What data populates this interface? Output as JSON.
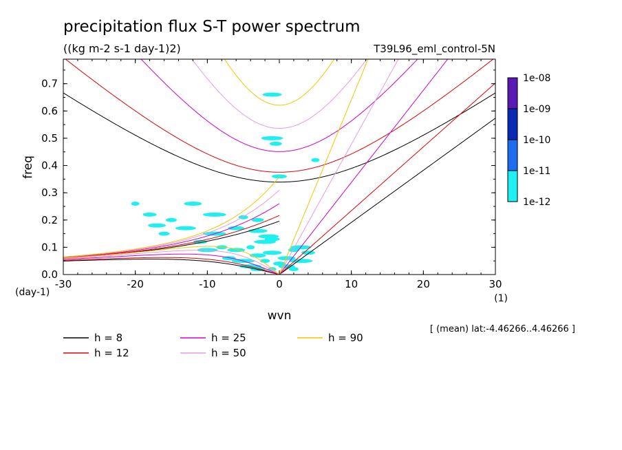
{
  "chart_data": {
    "type": "line",
    "title": "precipitation flux S-T power spectrum",
    "subtitle": "((kg m-2 s-1 day-1)2)",
    "run_label": "T39L96_eml_control-5N",
    "xlabel": "wvn",
    "ylabel": "freq",
    "x_unit": "(1)",
    "y_unit": "(day-1)",
    "xlim": [
      -30,
      30
    ],
    "ylim": [
      0.0,
      0.79
    ],
    "xticks": [
      "-30",
      "-20",
      "-10",
      "0",
      "10",
      "20",
      "30"
    ],
    "yticks": [
      "0.0",
      "0.1",
      "0.2",
      "0.3",
      "0.4",
      "0.5",
      "0.6",
      "0.7"
    ],
    "footnote": "[ (mean) lat:-4.46266..4.46266 ]",
    "colorbar": {
      "labels": [
        "1e-08",
        "1e-09",
        "1e-10",
        "1e-11",
        "1e-12"
      ],
      "colors": [
        "#5a19b4",
        "#0a2ab4",
        "#1e6cf0",
        "#1ef0f0"
      ]
    },
    "series": [
      {
        "name": "h =  8",
        "h": 8,
        "color": "#000000"
      },
      {
        "name": "h = 12",
        "h": 12,
        "color": "#e00000"
      },
      {
        "name": "h = 25",
        "h": 25,
        "color": "#d000c8"
      },
      {
        "name": "h = 50",
        "h": 50,
        "color": "#e89ae0"
      },
      {
        "name": "h = 90",
        "h": 90,
        "color": "#f0c800"
      }
    ],
    "spectrum_blobs": [
      [
        -20,
        0.26
      ],
      [
        -17,
        0.18
      ],
      [
        -16,
        0.15
      ],
      [
        -13,
        0.17
      ],
      [
        -11,
        0.12
      ],
      [
        -9,
        0.15
      ],
      [
        -6,
        0.17
      ],
      [
        -5,
        0.21
      ],
      [
        -3,
        0.16
      ],
      [
        -3,
        0.2
      ],
      [
        -2,
        0.12
      ],
      [
        -1,
        0.13
      ],
      [
        -4,
        0.1
      ],
      [
        -6,
        0.09
      ],
      [
        -8,
        0.1
      ],
      [
        -10,
        0.09
      ],
      [
        -7,
        0.06
      ],
      [
        -5,
        0.05
      ],
      [
        -3,
        0.07
      ],
      [
        -2,
        0.05
      ],
      [
        -1,
        0.08
      ],
      [
        0,
        0.04
      ],
      [
        -4,
        0.03
      ],
      [
        -3,
        0.02
      ],
      [
        -1,
        0.02
      ],
      [
        1,
        0.06
      ],
      [
        2,
        0.09
      ],
      [
        3,
        0.1
      ],
      [
        4,
        0.08
      ],
      [
        3,
        0.05
      ],
      [
        1,
        0.03
      ],
      [
        2,
        0.02
      ],
      [
        -1,
        0.66
      ],
      [
        -0.5,
        0.48
      ],
      [
        -1,
        0.5
      ],
      [
        0,
        0.36
      ],
      [
        5,
        0.42
      ],
      [
        -12,
        0.26
      ],
      [
        -15,
        0.2
      ],
      [
        -1.5,
        0.14
      ],
      [
        -18,
        0.22
      ],
      [
        -9,
        0.22
      ]
    ]
  }
}
